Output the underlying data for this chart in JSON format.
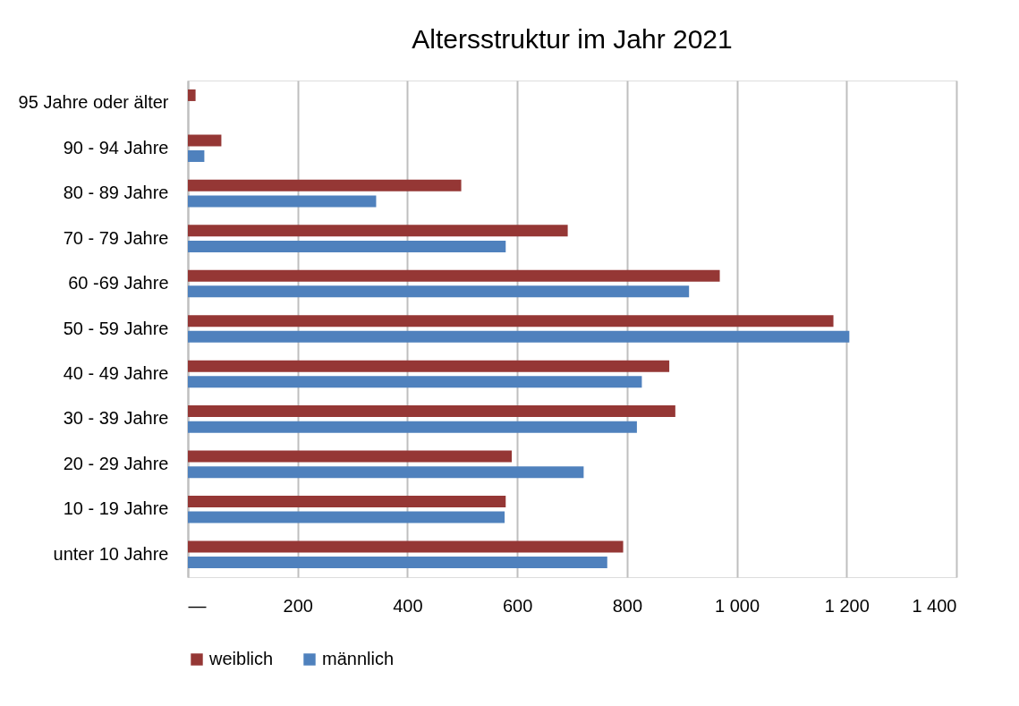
{
  "chart_data": {
    "type": "bar",
    "orientation": "horizontal",
    "title": "Altersstruktur im Jahr 2021",
    "categories": [
      "95 Jahre oder älter",
      "90 - 94 Jahre",
      "80 - 89 Jahre",
      "70 - 79 Jahre",
      "60 -69 Jahre",
      "50 - 59 Jahre",
      "40 - 49 Jahre",
      "30 - 39 Jahre",
      "20 - 29 Jahre",
      "10 - 19 Jahre",
      "unter 10 Jahre"
    ],
    "series": [
      {
        "name": "weiblich",
        "color": "#953735",
        "values": [
          14,
          61,
          498,
          692,
          969,
          1176,
          877,
          888,
          590,
          579,
          793
        ]
      },
      {
        "name": "männlich",
        "color": "#4f81bd",
        "values": [
          null,
          30,
          343,
          579,
          913,
          1205,
          827,
          818,
          721,
          577,
          764
        ]
      }
    ],
    "xlim": [
      0,
      1400
    ],
    "xticks": [
      {
        "value": 0,
        "label": "—"
      },
      200,
      400,
      600,
      800,
      {
        "value": 1000,
        "label": "1 000"
      },
      {
        "value": 1200,
        "label": "1 200"
      },
      {
        "value": 1400,
        "label": "1 400"
      }
    ],
    "grid": "x",
    "legend": "bottom"
  }
}
